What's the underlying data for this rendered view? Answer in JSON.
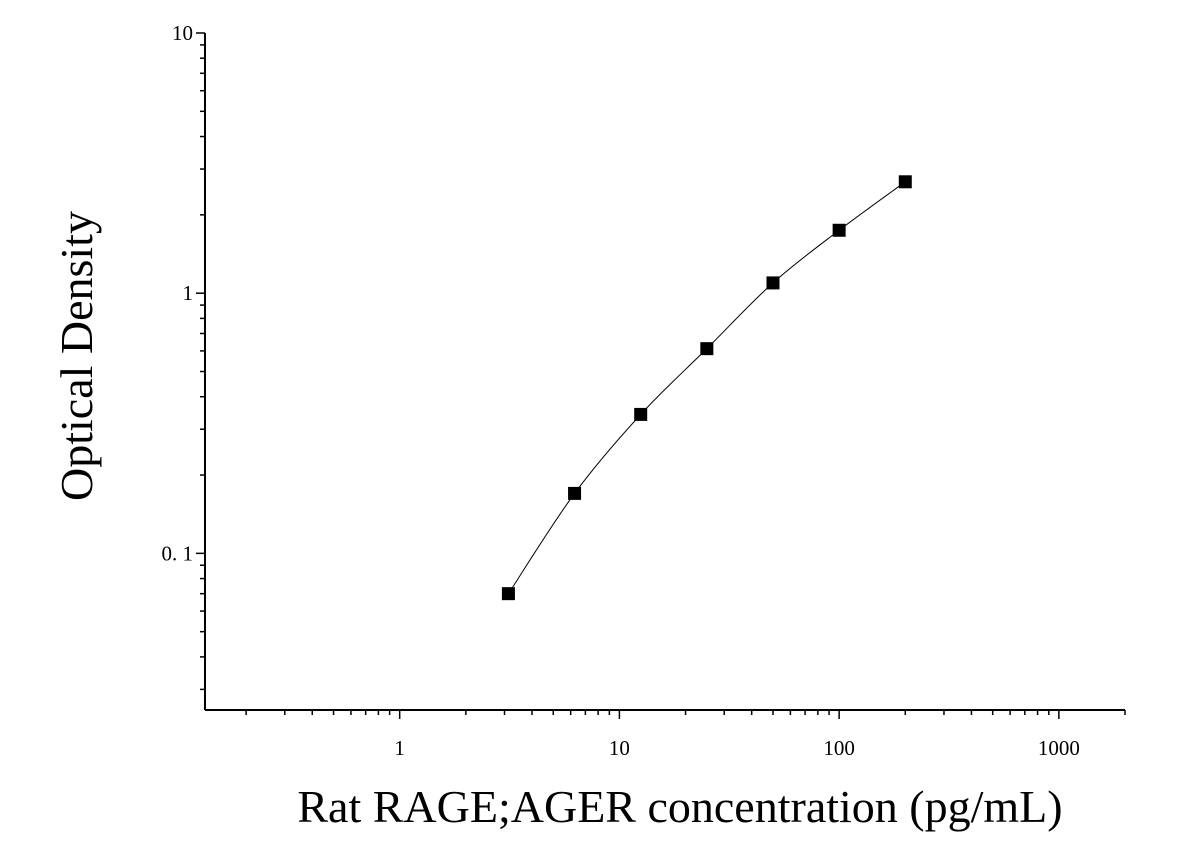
{
  "chart_data": {
    "type": "scatter",
    "xscale": "log",
    "yscale": "log",
    "xlim": [
      0.13,
      2000
    ],
    "ylim": [
      0.025,
      10
    ],
    "xlabel": "Rat RAGE;AGER concentration (pg/mL)",
    "ylabel": "Optical Density",
    "x_tick_labels": [
      {
        "value": 1,
        "label": "1"
      },
      {
        "value": 10,
        "label": "10"
      },
      {
        "value": 100,
        "label": "100"
      },
      {
        "value": 1000,
        "label": "1000"
      }
    ],
    "y_tick_labels": [
      {
        "value": 0.1,
        "label": "0. 1"
      },
      {
        "value": 1,
        "label": "1"
      },
      {
        "value": 10,
        "label": "10"
      }
    ],
    "grid": false,
    "marker": "square",
    "fit_line": "smooth curve through points",
    "series": [
      {
        "x": [
          3.125,
          6.25,
          12.5,
          25,
          50,
          100,
          200
        ],
        "y": [
          0.07,
          0.17,
          0.342,
          0.612,
          1.095,
          1.745,
          2.68
        ]
      }
    ]
  }
}
